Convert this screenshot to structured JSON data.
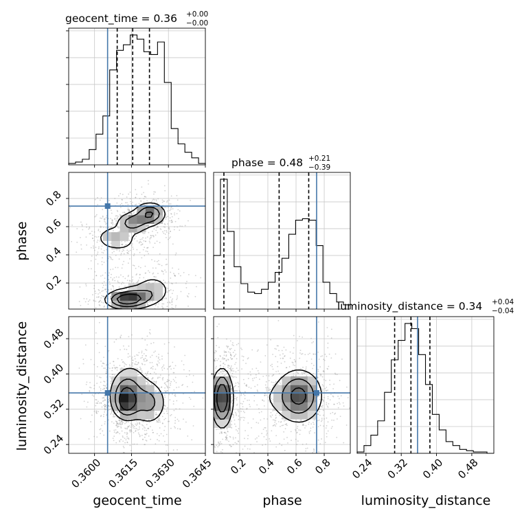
{
  "chart_data": {
    "type": "corner",
    "parameters": [
      "geocent_time",
      "phase",
      "luminosity_distance"
    ],
    "truth_color": "#4477aa",
    "grid": true,
    "titles": [
      {
        "parameter": "geocent_time",
        "prefix": "geocent_time = ",
        "median": "0.36",
        "plus": "+0.00",
        "minus": "−0.00"
      },
      {
        "parameter": "phase",
        "prefix": "phase = ",
        "median": "0.48",
        "plus": "+0.21",
        "minus": "−0.39"
      },
      {
        "parameter": "luminosity_distance",
        "prefix": "luminosity_distance = ",
        "median": "0.34",
        "plus": "+0.04",
        "minus": "−0.04"
      }
    ],
    "axes": {
      "geocent_time": {
        "label": "geocent_time",
        "range": [
          0.35895,
          0.3645
        ],
        "ticks": [
          0.36,
          0.3615,
          0.363,
          0.3645
        ],
        "tick_labels": [
          "0.3600",
          "0.3615",
          "0.3630",
          "0.3645"
        ]
      },
      "phase": {
        "label": "phase",
        "range": [
          0.015,
          0.985
        ],
        "ticks": [
          0.2,
          0.4,
          0.6,
          0.8
        ],
        "tick_labels": [
          "0.2",
          "0.4",
          "0.6",
          "0.8"
        ]
      },
      "luminosity_distance": {
        "label": "luminosity_distance",
        "range": [
          0.22,
          0.53
        ],
        "ticks": [
          0.24,
          0.32,
          0.4,
          0.48
        ],
        "tick_labels": [
          "0.24",
          "0.32",
          "0.40",
          "0.48"
        ]
      }
    },
    "truths": {
      "geocent_time": 0.36053,
      "phase": 0.746,
      "luminosity_distance": 0.357
    },
    "quantiles": {
      "geocent_time": [
        0.36092,
        0.36155,
        0.36223
      ],
      "phase": [
        0.088,
        0.48,
        0.69
      ],
      "luminosity_distance": [
        0.305,
        0.342,
        0.385
      ]
    },
    "histograms": {
      "geocent_time": {
        "bin_edges": [
          0.35895,
          0.359228,
          0.359505,
          0.359783,
          0.36006,
          0.360338,
          0.360615,
          0.360893,
          0.36117,
          0.361448,
          0.361725,
          0.362003,
          0.36228,
          0.362558,
          0.362835,
          0.363113,
          0.36339,
          0.363668,
          0.363945,
          0.364223,
          0.3645
        ],
        "counts": [
          0.01,
          0.02,
          0.04,
          0.11,
          0.22,
          0.35,
          0.68,
          0.82,
          0.86,
          0.93,
          0.9,
          0.81,
          0.79,
          0.88,
          0.59,
          0.26,
          0.15,
          0.09,
          0.05,
          0.01
        ]
      },
      "phase": {
        "bin_edges": [
          0.015,
          0.0635,
          0.112,
          0.1605,
          0.209,
          0.2575,
          0.306,
          0.3545,
          0.403,
          0.4515,
          0.5,
          0.5485,
          0.597,
          0.6455,
          0.694,
          0.7425,
          0.791,
          0.8395,
          0.888,
          0.9365,
          0.985
        ],
        "counts": [
          0.38,
          0.92,
          0.55,
          0.3,
          0.18,
          0.12,
          0.11,
          0.14,
          0.19,
          0.26,
          0.36,
          0.53,
          0.63,
          0.64,
          0.63,
          0.45,
          0.19,
          0.11,
          0.05,
          0.03
        ]
      },
      "luminosity_distance": {
        "bin_edges": [
          0.22,
          0.2355,
          0.251,
          0.2665,
          0.282,
          0.2975,
          0.313,
          0.3285,
          0.344,
          0.3595,
          0.375,
          0.3905,
          0.406,
          0.4215,
          0.437,
          0.4525,
          0.468,
          0.4835,
          0.499,
          0.5145,
          0.53
        ],
        "counts": [
          0.01,
          0.06,
          0.14,
          0.25,
          0.47,
          0.72,
          0.87,
          1.0,
          0.96,
          0.76,
          0.53,
          0.3,
          0.18,
          0.09,
          0.06,
          0.03,
          0.02,
          0.01,
          0.01,
          0.0
        ]
      }
    },
    "density_modes": {
      "phase_vs_geocent_time": [
        {
          "x": 0.36124,
          "y": 0.08,
          "sx": 0.00045,
          "sy": 0.035,
          "w": 1.0
        },
        {
          "x": 0.3617,
          "y": 0.1,
          "sx": 0.00055,
          "sy": 0.045,
          "w": 0.55
        },
        {
          "x": 0.3624,
          "y": 0.16,
          "sx": 0.00045,
          "sy": 0.06,
          "w": 0.35
        },
        {
          "x": 0.3608,
          "y": 0.52,
          "sx": 0.00045,
          "sy": 0.05,
          "w": 0.45
        },
        {
          "x": 0.36155,
          "y": 0.63,
          "sx": 0.00035,
          "sy": 0.04,
          "w": 0.75
        },
        {
          "x": 0.36225,
          "y": 0.69,
          "sx": 0.00035,
          "sy": 0.045,
          "w": 1.0
        },
        {
          "x": 0.3616,
          "y": 0.42,
          "sx": 0.0006,
          "sy": 0.12,
          "w": 0.12
        }
      ],
      "luminosity_distance_vs_geocent_time": [
        {
          "x": 0.36125,
          "y": 0.355,
          "sx": 0.00035,
          "sy": 0.025,
          "w": 0.9
        },
        {
          "x": 0.3613,
          "y": 0.33,
          "sx": 0.0003,
          "sy": 0.02,
          "w": 1.0
        },
        {
          "x": 0.3622,
          "y": 0.335,
          "sx": 0.0004,
          "sy": 0.028,
          "w": 0.85
        },
        {
          "x": 0.3615,
          "y": 0.385,
          "sx": 0.00045,
          "sy": 0.03,
          "w": 0.35
        }
      ],
      "luminosity_distance_vs_phase": [
        {
          "x": 0.075,
          "y": 0.345,
          "sx": 0.04,
          "sy": 0.035,
          "w": 1.0
        },
        {
          "x": 0.62,
          "y": 0.35,
          "sx": 0.09,
          "sy": 0.033,
          "w": 0.75
        },
        {
          "x": 0.4,
          "y": 0.345,
          "sx": 0.12,
          "sy": 0.028,
          "w": 0.1
        }
      ]
    }
  }
}
